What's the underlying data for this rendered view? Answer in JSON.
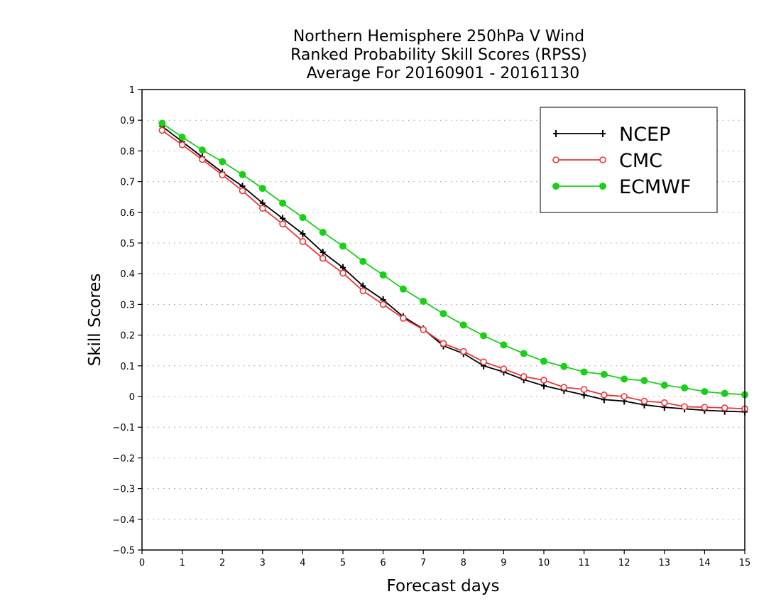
{
  "chart_data": {
    "type": "line",
    "title_lines": [
      "Northern Hemisphere 250hPa V Wind",
      "Ranked Probability Skill Scores (RPSS)",
      "Average For 20160901 - 20161130"
    ],
    "xlabel": "Forecast days",
    "ylabel": "Skill Scores",
    "xlim": [
      0,
      15
    ],
    "ylim": [
      -0.5,
      1
    ],
    "x_ticks": [
      "0",
      "1",
      "2",
      "3",
      "4",
      "5",
      "6",
      "7",
      "8",
      "9",
      "10",
      "11",
      "12",
      "13",
      "14",
      "15"
    ],
    "y_ticks": [
      "1",
      "0.9",
      "0.8",
      "0.7",
      "0.6",
      "0.5",
      "0.4",
      "0.3",
      "0.2",
      "0.1",
      "0",
      "−0.1",
      "−0.2",
      "−0.3",
      "−0.4",
      "−0.5"
    ],
    "y_tick_values": [
      1,
      0.9,
      0.8,
      0.7,
      0.6,
      0.5,
      0.4,
      0.3,
      0.2,
      0.1,
      0,
      -0.1,
      -0.2,
      -0.3,
      -0.4,
      -0.5
    ],
    "grid": "horizontal dotted",
    "legend_position": "top-right",
    "x": [
      0.5,
      1,
      1.5,
      2,
      2.5,
      3,
      3.5,
      4,
      4.5,
      5,
      5.5,
      6,
      6.5,
      7,
      7.5,
      8,
      8.5,
      9,
      9.5,
      10,
      10.5,
      11,
      11.5,
      12,
      12.5,
      13,
      13.5,
      14,
      14.5,
      15
    ],
    "series": [
      {
        "name": "NCEP",
        "color": "#000000",
        "marker": "plus",
        "values": [
          0.88,
          0.83,
          0.78,
          0.73,
          0.685,
          0.63,
          0.58,
          0.53,
          0.47,
          0.42,
          0.36,
          0.315,
          0.26,
          0.22,
          0.165,
          0.14,
          0.1,
          0.08,
          0.055,
          0.035,
          0.02,
          0.005,
          -0.01,
          -0.015,
          -0.027,
          -0.035,
          -0.04,
          -0.045,
          -0.048,
          -0.05
        ]
      },
      {
        "name": "CMC",
        "color": "#e8353a",
        "marker": "open-circle",
        "values": [
          0.867,
          0.82,
          0.772,
          0.722,
          0.67,
          0.613,
          0.562,
          0.505,
          0.45,
          0.402,
          0.344,
          0.3,
          0.255,
          0.218,
          0.173,
          0.147,
          0.113,
          0.09,
          0.065,
          0.053,
          0.03,
          0.023,
          0.005,
          0.0,
          -0.015,
          -0.02,
          -0.033,
          -0.035,
          -0.037,
          -0.04
        ]
      },
      {
        "name": "ECMWF",
        "color": "#18d018",
        "marker": "filled-circle",
        "values": [
          0.89,
          0.845,
          0.803,
          0.765,
          0.723,
          0.678,
          0.63,
          0.583,
          0.535,
          0.49,
          0.44,
          0.396,
          0.35,
          0.31,
          0.27,
          0.233,
          0.198,
          0.168,
          0.14,
          0.115,
          0.098,
          0.08,
          0.072,
          0.057,
          0.052,
          0.037,
          0.028,
          0.016,
          0.01,
          0.006
        ]
      }
    ]
  }
}
